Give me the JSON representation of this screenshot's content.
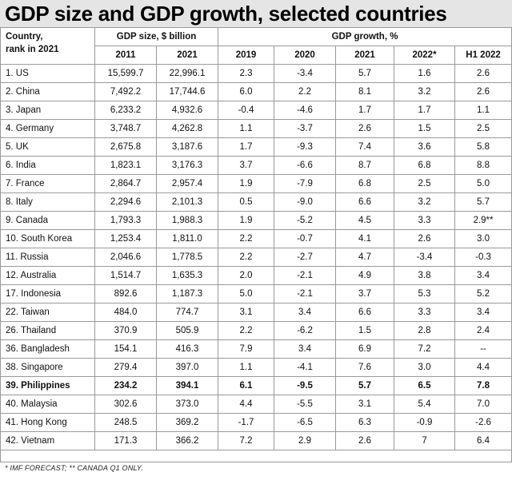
{
  "title": "GDP size and GDP growth, selected countries",
  "headers": {
    "country": "Country,",
    "country_line2": "rank in 2021",
    "size_group": "GDP size, $ billion",
    "growth_group": "GDP growth, %",
    "years": [
      "2011",
      "2021",
      "2019",
      "2020",
      "2021",
      "2022*",
      "H1 2022"
    ]
  },
  "rows": [
    {
      "country": "1. US",
      "cells": [
        "15,599.7",
        "22,996.1",
        "2.3",
        "-3.4",
        "5.7",
        "1.6",
        "2.6"
      ]
    },
    {
      "country": "2. China",
      "cells": [
        "7,492.2",
        "17,744.6",
        "6.0",
        "2.2",
        "8.1",
        "3.2",
        "2.6"
      ]
    },
    {
      "country": "3. Japan",
      "cells": [
        "6,233.2",
        "4,932.6",
        "-0.4",
        "-4.6",
        "1.7",
        "1.7",
        "1.1"
      ]
    },
    {
      "country": "4. Germany",
      "cells": [
        "3,748.7",
        "4,262.8",
        "1.1",
        "-3.7",
        "2.6",
        "1.5",
        "2.5"
      ]
    },
    {
      "country": "5. UK",
      "cells": [
        "2,675.8",
        "3,187.6",
        "1.7",
        "-9.3",
        "7.4",
        "3.6",
        "5.8"
      ]
    },
    {
      "country": "6. India",
      "cells": [
        "1,823.1",
        "3,176.3",
        "3.7",
        "-6.6",
        "8.7",
        "6.8",
        "8.8"
      ]
    },
    {
      "country": "7. France",
      "cells": [
        "2,864.7",
        "2,957.4",
        "1.9",
        "-7.9",
        "6.8",
        "2.5",
        "5.0"
      ]
    },
    {
      "country": "8. Italy",
      "cells": [
        "2,294.6",
        "2,101.3",
        "0.5",
        "-9.0",
        "6.6",
        "3.2",
        "5.7"
      ]
    },
    {
      "country": "9. Canada",
      "cells": [
        "1,793.3",
        "1,988.3",
        "1.9",
        "-5.2",
        "4.5",
        "3.3",
        "2.9**"
      ]
    },
    {
      "country": "10. South Korea",
      "cells": [
        "1,253.4",
        "1,811.0",
        "2.2",
        "-0.7",
        "4.1",
        "2.6",
        "3.0"
      ]
    },
    {
      "country": "11. Russia",
      "cells": [
        "2,046.6",
        "1,778.5",
        "2.2",
        "-2.7",
        "4.7",
        "-3.4",
        "-0.3"
      ]
    },
    {
      "country": "12. Australia",
      "cells": [
        "1,514.7",
        "1,635.3",
        "2.0",
        "-2.1",
        "4.9",
        "3.8",
        "3.4"
      ]
    },
    {
      "country": "17. Indonesia",
      "cells": [
        "892.6",
        "1,187.3",
        "5.0",
        "-2.1",
        "3.7",
        "5.3",
        "5.2"
      ]
    },
    {
      "country": "22. Taiwan",
      "cells": [
        "484.0",
        "774.7",
        "3.1",
        "3.4",
        "6.6",
        "3.3",
        "3.4"
      ]
    },
    {
      "country": "26. Thailand",
      "cells": [
        "370.9",
        "505.9",
        "2.2",
        "-6.2",
        "1.5",
        "2.8",
        "2.4"
      ]
    },
    {
      "country": "36. Bangladesh",
      "cells": [
        "154.1",
        "416.3",
        "7.9",
        "3.4",
        "6.9",
        "7.2",
        "--"
      ]
    },
    {
      "country": "38. Singapore",
      "cells": [
        "279.4",
        "397.0",
        "1.1",
        "-4.1",
        "7.6",
        "3.0",
        "4.4"
      ]
    },
    {
      "country": "39. Philippines",
      "cells": [
        "234.2",
        "394.1",
        "6.1",
        "-9.5",
        "5.7",
        "6.5",
        "7.8"
      ],
      "bold": true
    },
    {
      "country": "40. Malaysia",
      "cells": [
        "302.6",
        "373.0",
        "4.4",
        "-5.5",
        "3.1",
        "5.4",
        "7.0"
      ]
    },
    {
      "country": "41. Hong Kong",
      "cells": [
        "248.5",
        "369.2",
        "-1.7",
        "-6.5",
        "6.3",
        "-0.9",
        "-2.6"
      ]
    },
    {
      "country": "42. Vietnam",
      "cells": [
        "171.3",
        "366.2",
        "7.2",
        "2.9",
        "2.6",
        "7",
        "6.4"
      ]
    }
  ],
  "footnote": "* IMF FORECAST; ** CANADA Q1 ONLY."
}
